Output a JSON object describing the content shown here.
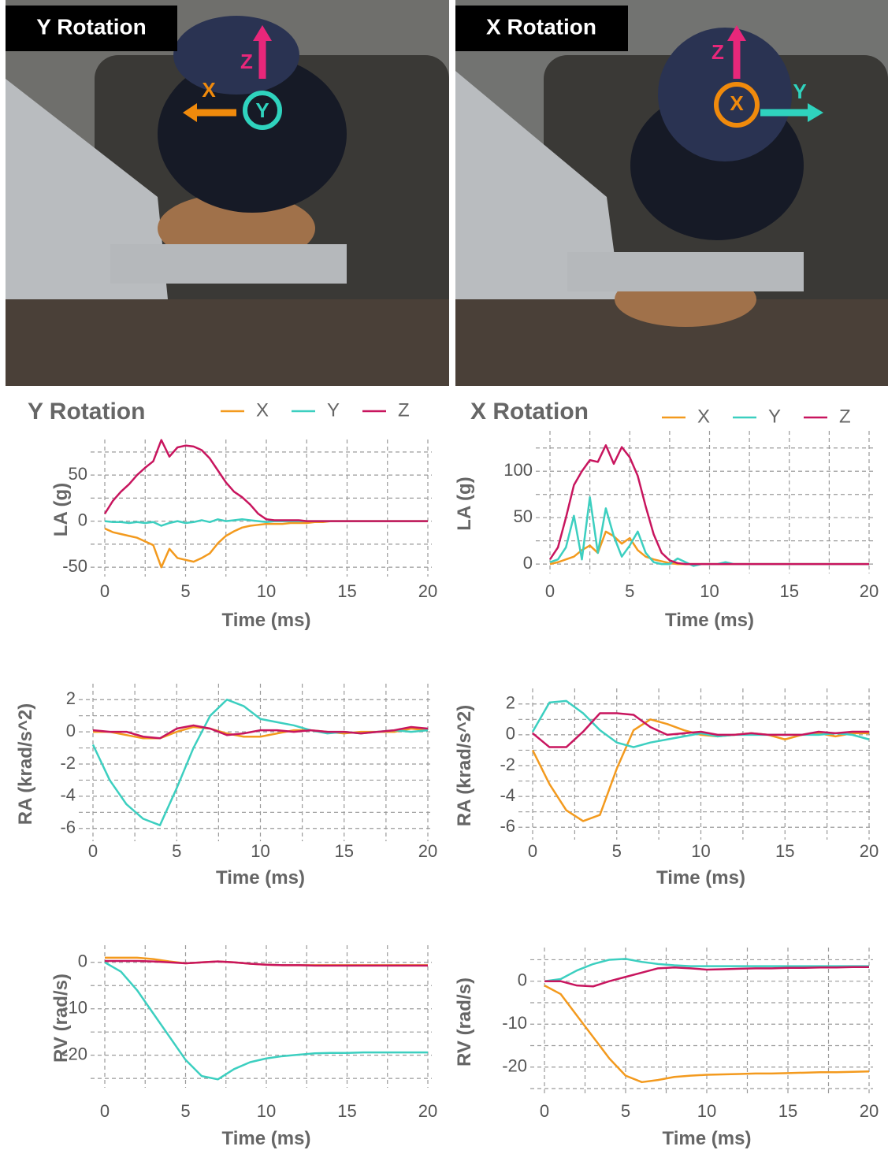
{
  "photos": [
    {
      "label": "Y Rotation",
      "axes": [
        "Z",
        "X",
        "Y"
      ]
    },
    {
      "label": "X Rotation",
      "axes": [
        "Z",
        "X",
        "Y"
      ]
    }
  ],
  "chart_data": [
    {
      "type": "line",
      "title": "Y Rotation",
      "x_label": "Time (ms)",
      "y_label": "LA (g)",
      "xlim": [
        0,
        20
      ],
      "xticks": [
        0,
        5,
        10,
        15,
        20
      ],
      "x_minor_ticks": [
        2.5,
        7.5,
        12.5,
        17.5
      ],
      "ylim": [
        -55,
        80
      ],
      "yticks": [
        -50,
        0,
        50
      ],
      "y_minor_ticks": [
        -25,
        25,
        75
      ],
      "grid": true,
      "x": [
        0,
        0.5,
        1,
        1.5,
        2,
        2.5,
        3,
        3.5,
        4,
        4.5,
        5,
        5.5,
        6,
        6.5,
        7,
        7.5,
        8,
        8.5,
        9,
        9.5,
        10,
        10.5,
        11,
        11.5,
        12,
        12.5,
        13,
        13.5,
        14,
        14.5,
        15,
        15.5,
        16,
        16.5,
        17,
        17.5,
        18,
        18.5,
        19,
        19.5,
        20
      ],
      "series": [
        {
          "name": "X",
          "color": "#f39a1e",
          "values": [
            -8,
            -12,
            -14,
            -16,
            -18,
            -22,
            -26,
            -50,
            -30,
            -40,
            -42,
            -44,
            -40,
            -35,
            -24,
            -16,
            -11,
            -7,
            -5,
            -4,
            -3,
            -3,
            -3,
            -2,
            -2,
            -2,
            -1,
            -1,
            0,
            0,
            0,
            0,
            0,
            0,
            0,
            0,
            0,
            0,
            0,
            0,
            0
          ]
        },
        {
          "name": "Y",
          "color": "#3ccfc0",
          "values": [
            0,
            -1,
            -1,
            -2,
            -1,
            -2,
            -1,
            -5,
            -2,
            0,
            -2,
            -1,
            1,
            -1,
            2,
            0,
            1,
            2,
            1,
            0,
            -1,
            0,
            0,
            0,
            0,
            0,
            0,
            0,
            0,
            0,
            0,
            0,
            0,
            0,
            0,
            0,
            0,
            0,
            0,
            0,
            0
          ]
        },
        {
          "name": "Z",
          "color": "#c8155e",
          "values": [
            8,
            22,
            32,
            40,
            50,
            58,
            65,
            88,
            70,
            80,
            82,
            81,
            77,
            68,
            55,
            42,
            32,
            26,
            18,
            8,
            2,
            1,
            1,
            1,
            1,
            0,
            0,
            0,
            0,
            0,
            0,
            0,
            0,
            0,
            0,
            0,
            0,
            0,
            0,
            0,
            0
          ]
        }
      ]
    },
    {
      "type": "line",
      "title": "X Rotation",
      "x_label": "Time (ms)",
      "y_label": "LA (g)",
      "xlim": [
        0,
        20
      ],
      "xticks": [
        0,
        5,
        10,
        15,
        20
      ],
      "x_minor_ticks": [
        2.5,
        7.5,
        12.5,
        17.5
      ],
      "ylim": [
        -5,
        135
      ],
      "yticks": [
        0,
        50,
        100
      ],
      "y_minor_ticks": [
        25,
        75,
        125
      ],
      "grid": true,
      "x": [
        0,
        0.5,
        1,
        1.5,
        2,
        2.5,
        3,
        3.5,
        4,
        4.5,
        5,
        5.5,
        6,
        6.5,
        7,
        7.5,
        8,
        8.5,
        9,
        9.5,
        10,
        10.5,
        11,
        11.5,
        12,
        12.5,
        13,
        13.5,
        14,
        14.5,
        15,
        15.5,
        16,
        16.5,
        17,
        17.5,
        18,
        18.5,
        19,
        19.5,
        20
      ],
      "series": [
        {
          "name": "X",
          "color": "#f39a1e",
          "values": [
            0,
            2,
            5,
            8,
            15,
            20,
            12,
            35,
            30,
            22,
            28,
            15,
            8,
            5,
            3,
            1,
            0,
            0,
            0,
            0,
            0,
            0,
            0,
            0,
            0,
            0,
            0,
            0,
            0,
            0,
            0,
            0,
            0,
            0,
            0,
            0,
            0,
            0,
            0,
            0,
            0
          ]
        },
        {
          "name": "Y",
          "color": "#3ccfc0",
          "values": [
            2,
            5,
            18,
            52,
            5,
            72,
            12,
            60,
            30,
            8,
            20,
            35,
            12,
            2,
            0,
            0,
            6,
            2,
            -2,
            0,
            0,
            0,
            2,
            0,
            0,
            0,
            0,
            0,
            0,
            0,
            0,
            0,
            0,
            0,
            0,
            0,
            0,
            0,
            0,
            0,
            0
          ]
        },
        {
          "name": "Z",
          "color": "#c8155e",
          "values": [
            5,
            18,
            50,
            85,
            100,
            112,
            110,
            128,
            108,
            126,
            115,
            95,
            62,
            32,
            12,
            4,
            1,
            0,
            0,
            0,
            0,
            0,
            0,
            0,
            0,
            0,
            0,
            0,
            0,
            0,
            0,
            0,
            0,
            0,
            0,
            0,
            0,
            0,
            0,
            0,
            0
          ]
        }
      ]
    },
    {
      "type": "line",
      "x_label": "Time (ms)",
      "y_label": "RA (krad/s^2)",
      "xlim": [
        0,
        20
      ],
      "xticks": [
        0,
        5,
        10,
        15,
        20
      ],
      "x_minor_ticks": [
        2.5,
        7.5,
        12.5,
        17.5
      ],
      "ylim": [
        -6.5,
        2.5
      ],
      "yticks": [
        -6,
        -4,
        -2,
        0,
        2
      ],
      "y_minor_ticks": [
        -5,
        -3,
        -1,
        1
      ],
      "grid": true,
      "x": [
        0,
        1,
        2,
        3,
        4,
        5,
        6,
        7,
        8,
        9,
        10,
        11,
        12,
        13,
        14,
        15,
        16,
        17,
        18,
        19,
        20
      ],
      "series": [
        {
          "color": "#f39a1e",
          "values": [
            0,
            0,
            -0.2,
            -0.4,
            -0.4,
            0,
            0.3,
            0.2,
            -0.1,
            -0.3,
            -0.3,
            -0.1,
            0.1,
            0.1,
            0,
            -0.1,
            0,
            0,
            0,
            0.2,
            0.1
          ]
        },
        {
          "color": "#3ccfc0",
          "values": [
            -0.8,
            -3.0,
            -4.5,
            -5.4,
            -5.8,
            -3.5,
            -1.0,
            1.0,
            2.0,
            1.6,
            0.8,
            0.6,
            0.4,
            0.1,
            -0.1,
            0,
            -0.1,
            0,
            0.1,
            0,
            0.1
          ]
        },
        {
          "color": "#c8155e",
          "values": [
            0.1,
            0,
            0,
            -0.3,
            -0.4,
            0.2,
            0.4,
            0.2,
            -0.2,
            -0.1,
            0.1,
            0.1,
            0,
            0.1,
            0,
            0,
            -0.1,
            0,
            0.1,
            0.3,
            0.2
          ]
        }
      ]
    },
    {
      "type": "line",
      "x_label": "Time (ms)",
      "y_label": "RA (krad/s^2)",
      "xlim": [
        0,
        20
      ],
      "xticks": [
        0,
        5,
        10,
        15,
        20
      ],
      "x_minor_ticks": [
        2.5,
        7.5,
        12.5,
        17.5
      ],
      "ylim": [
        -6.5,
        2.5
      ],
      "yticks": [
        -6,
        -4,
        -2,
        0,
        2
      ],
      "y_minor_ticks": [
        -5,
        -3,
        -1,
        1
      ],
      "grid": true,
      "x": [
        0,
        1,
        2,
        3,
        4,
        5,
        6,
        7,
        8,
        9,
        10,
        11,
        12,
        13,
        14,
        15,
        16,
        17,
        18,
        19,
        20
      ],
      "series": [
        {
          "color": "#f39a1e",
          "values": [
            -1,
            -3.2,
            -4.9,
            -5.6,
            -5.2,
            -2.2,
            0.3,
            1.0,
            0.7,
            0.3,
            0,
            -0.1,
            0,
            0.1,
            0,
            -0.3,
            0,
            0.1,
            -0.1,
            0.1,
            0.1
          ]
        },
        {
          "color": "#3ccfc0",
          "values": [
            0.2,
            2.1,
            2.2,
            1.4,
            0.3,
            -0.5,
            -0.8,
            -0.5,
            -0.3,
            -0.1,
            0.1,
            -0.1,
            0,
            0,
            0,
            0,
            0,
            0,
            0.1,
            0,
            -0.3
          ]
        },
        {
          "color": "#c8155e",
          "values": [
            0.1,
            -0.8,
            -0.8,
            0.2,
            1.4,
            1.4,
            1.3,
            0.5,
            0,
            0.1,
            0.2,
            0,
            0,
            0.1,
            0,
            0,
            0,
            0.2,
            0.1,
            0.2,
            0.2
          ]
        }
      ]
    },
    {
      "type": "line",
      "x_label": "Time (ms)",
      "y_label": "RV (rad/s)",
      "xlim": [
        0,
        20
      ],
      "xticks": [
        0,
        5,
        10,
        15,
        20
      ],
      "x_minor_ticks": [
        2.5,
        7.5,
        12.5,
        17.5
      ],
      "ylim": [
        -26,
        2
      ],
      "yticks": [
        -20,
        -10,
        0
      ],
      "y_minor_ticks": [
        -25,
        -15,
        -5
      ],
      "grid": true,
      "x": [
        0,
        1,
        2,
        3,
        4,
        5,
        6,
        7,
        8,
        9,
        10,
        11,
        12,
        13,
        14,
        15,
        16,
        17,
        18,
        19,
        20
      ],
      "series": [
        {
          "color": "#f39a1e",
          "values": [
            1,
            1,
            1,
            0.7,
            0.2,
            -0.2,
            0,
            0.2,
            0,
            -0.3,
            -0.5,
            -0.6,
            -0.6,
            -0.6,
            -0.6,
            -0.6,
            -0.6,
            -0.6,
            -0.6,
            -0.6,
            -0.6
          ]
        },
        {
          "color": "#3ccfc0",
          "values": [
            0,
            -2,
            -6,
            -11,
            -16,
            -21,
            -24.5,
            -25.2,
            -23,
            -21.5,
            -20.7,
            -20.2,
            -19.9,
            -19.6,
            -19.5,
            -19.5,
            -19.4,
            -19.4,
            -19.4,
            -19.4,
            -19.4
          ]
        },
        {
          "color": "#c8155e",
          "values": [
            0.3,
            0.3,
            0.3,
            0.2,
            0,
            -0.2,
            0,
            0.2,
            0,
            -0.3,
            -0.5,
            -0.6,
            -0.6,
            -0.7,
            -0.7,
            -0.7,
            -0.7,
            -0.7,
            -0.7,
            -0.7,
            -0.7
          ]
        }
      ]
    },
    {
      "type": "line",
      "x_label": "Time (ms)",
      "y_label": "RV (rad/s)",
      "xlim": [
        0,
        20
      ],
      "xticks": [
        0,
        5,
        10,
        15,
        20
      ],
      "x_minor_ticks": [
        2.5,
        7.5,
        12.5,
        17.5
      ],
      "ylim": [
        -25,
        6
      ],
      "yticks": [
        -20,
        -10,
        0
      ],
      "y_minor_ticks": [
        -25,
        -15,
        -5,
        5
      ],
      "grid": true,
      "x": [
        0,
        1,
        2,
        3,
        4,
        5,
        6,
        7,
        8,
        9,
        10,
        11,
        12,
        13,
        14,
        15,
        16,
        17,
        18,
        19,
        20
      ],
      "series": [
        {
          "color": "#f39a1e",
          "values": [
            -1,
            -3,
            -8,
            -13,
            -18,
            -22,
            -23.5,
            -23,
            -22.3,
            -22,
            -21.8,
            -21.7,
            -21.6,
            -21.5,
            -21.5,
            -21.4,
            -21.3,
            -21.2,
            -21.2,
            -21.1,
            -21
          ]
        },
        {
          "color": "#3ccfc0",
          "values": [
            0,
            0.5,
            2.5,
            4,
            5,
            5.2,
            4.5,
            4,
            3.7,
            3.5,
            3.5,
            3.5,
            3.5,
            3.5,
            3.5,
            3.5,
            3.5,
            3.5,
            3.5,
            3.5,
            3.5
          ]
        },
        {
          "color": "#c8155e",
          "values": [
            0,
            0,
            -1,
            -1.2,
            0,
            1,
            2,
            3,
            3.2,
            3,
            2.7,
            2.8,
            2.9,
            3,
            3,
            3.1,
            3.1,
            3.2,
            3.2,
            3.3,
            3.3
          ]
        }
      ]
    }
  ]
}
